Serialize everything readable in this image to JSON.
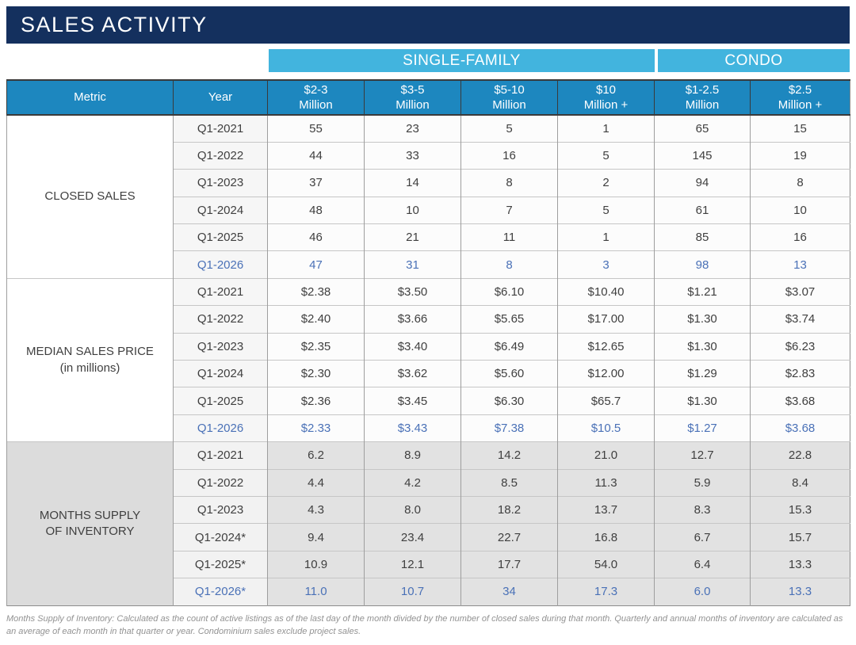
{
  "title": "SALES ACTIVITY",
  "bands": [
    {
      "label": "SINGLE-FAMILY",
      "span": 4
    },
    {
      "label": "CONDO",
      "span": 2
    }
  ],
  "table": {
    "header": {
      "metric": "Metric",
      "year": "Year",
      "price_ranges": [
        "$2-3\nMillion",
        "$3-5\nMillion",
        "$5-10\nMillion",
        "$10\nMillion +",
        "$1-2.5\nMillion",
        "$2.5\nMillion +"
      ]
    },
    "sections": [
      {
        "metric": "CLOSED SALES",
        "shaded": false,
        "rows": [
          {
            "year": "Q1-2021",
            "values": [
              "55",
              "23",
              "5",
              "1",
              "65",
              "15"
            ],
            "highlight": false
          },
          {
            "year": "Q1-2022",
            "values": [
              "44",
              "33",
              "16",
              "5",
              "145",
              "19"
            ],
            "highlight": false
          },
          {
            "year": "Q1-2023",
            "values": [
              "37",
              "14",
              "8",
              "2",
              "94",
              "8"
            ],
            "highlight": false
          },
          {
            "year": "Q1-2024",
            "values": [
              "48",
              "10",
              "7",
              "5",
              "61",
              "10"
            ],
            "highlight": false
          },
          {
            "year": "Q1-2025",
            "values": [
              "46",
              "21",
              "11",
              "1",
              "85",
              "16"
            ],
            "highlight": false
          },
          {
            "year": "Q1-2026",
            "values": [
              "47",
              "31",
              "8",
              "3",
              "98",
              "13"
            ],
            "highlight": true
          }
        ]
      },
      {
        "metric": "MEDIAN SALES PRICE\n(in millions)",
        "shaded": false,
        "rows": [
          {
            "year": "Q1-2021",
            "values": [
              "$2.38",
              "$3.50",
              "$6.10",
              "$10.40",
              "$1.21",
              "$3.07"
            ],
            "highlight": false
          },
          {
            "year": "Q1-2022",
            "values": [
              "$2.40",
              "$3.66",
              "$5.65",
              "$17.00",
              "$1.30",
              "$3.74"
            ],
            "highlight": false
          },
          {
            "year": "Q1-2023",
            "values": [
              "$2.35",
              "$3.40",
              "$6.49",
              "$12.65",
              "$1.30",
              "$6.23"
            ],
            "highlight": false
          },
          {
            "year": "Q1-2024",
            "values": [
              "$2.30",
              "$3.62",
              "$5.60",
              "$12.00",
              "$1.29",
              "$2.83"
            ],
            "highlight": false
          },
          {
            "year": "Q1-2025",
            "values": [
              "$2.36",
              "$3.45",
              "$6.30",
              "$65.7",
              "$1.30",
              "$3.68"
            ],
            "highlight": false
          },
          {
            "year": "Q1-2026",
            "values": [
              "$2.33",
              "$3.43",
              "$7.38",
              "$10.5",
              "$1.27",
              "$3.68"
            ],
            "highlight": true
          }
        ]
      },
      {
        "metric": "MONTHS SUPPLY\nOF INVENTORY",
        "shaded": true,
        "rows": [
          {
            "year": "Q1-2021",
            "values": [
              "6.2",
              "8.9",
              "14.2",
              "21.0",
              "12.7",
              "22.8"
            ],
            "highlight": false
          },
          {
            "year": "Q1-2022",
            "values": [
              "4.4",
              "4.2",
              "8.5",
              "11.3",
              "5.9",
              "8.4"
            ],
            "highlight": false
          },
          {
            "year": "Q1-2023",
            "values": [
              "4.3",
              "8.0",
              "18.2",
              "13.7",
              "8.3",
              "15.3"
            ],
            "highlight": false
          },
          {
            "year": "Q1-2024*",
            "values": [
              "9.4",
              "23.4",
              "22.7",
              "16.8",
              "6.7",
              "15.7"
            ],
            "highlight": false
          },
          {
            "year": "Q1-2025*",
            "values": [
              "10.9",
              "12.1",
              "17.7",
              "54.0",
              "6.4",
              "13.3"
            ],
            "highlight": false
          },
          {
            "year": "Q1-2026*",
            "values": [
              "11.0",
              "10.7",
              "34",
              "17.3",
              "6.0",
              "13.3"
            ],
            "highlight": true
          }
        ]
      }
    ]
  },
  "footnote": "Months Supply of Inventory: Calculated as the count of active listings as of the last day of the month divided by the number of closed sales during that month. Quarterly and annual months of inventory are calculated as an average of each month in that quarter or year. Condominium sales exclude project sales.",
  "colors": {
    "navy_header": "#14305e",
    "band_blue": "#42b4de",
    "table_header_blue": "#1d87bf",
    "highlight_text_blue": "#4a71b7",
    "shaded_section_gray": "#e2e2e2"
  }
}
